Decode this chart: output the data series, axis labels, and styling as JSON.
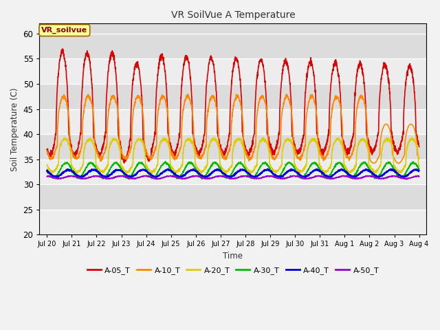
{
  "title": "VR SoilVue A Temperature",
  "xlabel": "Time",
  "ylabel": "Soil Temperature (C)",
  "ylim": [
    20,
    62
  ],
  "yticks": [
    20,
    25,
    30,
    35,
    40,
    45,
    50,
    55,
    60
  ],
  "plot_bg": "#dcdcdc",
  "fig_bg": "#f2f2f2",
  "annotation_text": "VR_soilvue",
  "annotation_bg": "#ffff99",
  "annotation_border": "#996600",
  "series_order": [
    "A-05_T",
    "A-10_T",
    "A-20_T",
    "A-30_T",
    "A-40_T",
    "A-50_T"
  ],
  "series": {
    "A-05_T": {
      "color": "#dd0000",
      "lw": 1.2
    },
    "A-10_T": {
      "color": "#ff8800",
      "lw": 1.2
    },
    "A-20_T": {
      "color": "#ddcc00",
      "lw": 1.2
    },
    "A-30_T": {
      "color": "#00bb00",
      "lw": 1.2
    },
    "A-40_T": {
      "color": "#0000dd",
      "lw": 1.5
    },
    "A-50_T": {
      "color": "#9900cc",
      "lw": 1.2
    }
  },
  "num_days": 15,
  "points_per_day": 144
}
